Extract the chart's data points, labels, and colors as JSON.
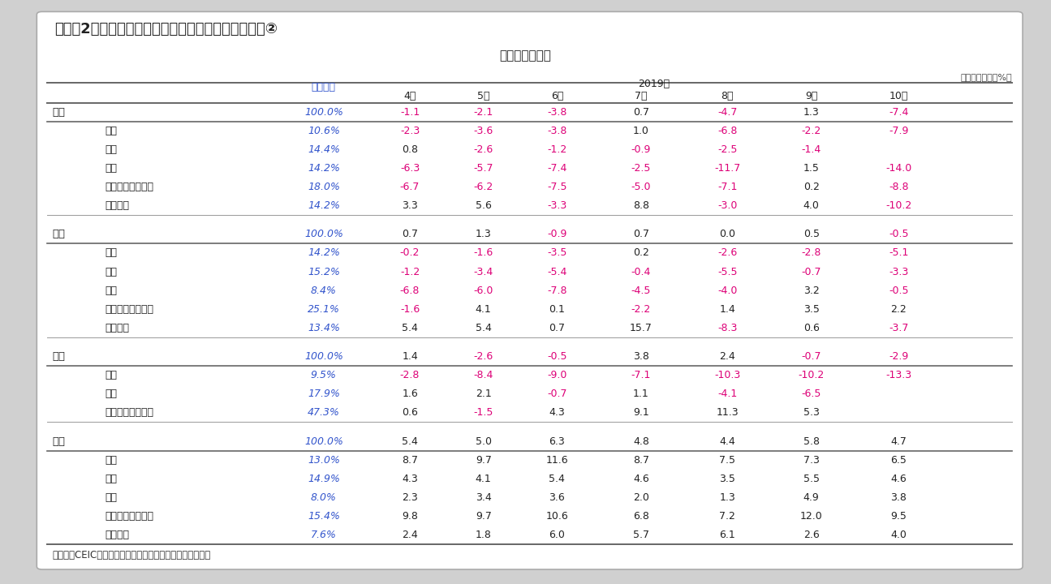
{
  "title": "（図表2）東アジア地域の鉱工業在庫・生産の推移　②",
  "subtitle": "－鉱工業生産－",
  "unit_label": "（前年同月比、%）",
  "source_label": "（出所）CEICよりインベスコ作成。一部はインベスコ推計",
  "header_year": "2019年",
  "header_weight": "ウエート",
  "columns": [
    "4月",
    "5月",
    "6月",
    "7月",
    "8月",
    "9月",
    "10月"
  ],
  "sections": [
    {
      "country": "日本",
      "weight": "100.0%",
      "values": [
        "-1.1",
        "-2.1",
        "-3.8",
        "0.7",
        "-4.7",
        "1.3",
        "-7.4"
      ],
      "neg_flags": [
        true,
        true,
        true,
        false,
        true,
        false,
        true
      ],
      "sub_rows": [
        {
          "label": "金属",
          "weight": "10.6%",
          "values": [
            "-2.3",
            "-3.6",
            "-3.8",
            "1.0",
            "-6.8",
            "-2.2",
            "-7.9"
          ],
          "neg_flags": [
            true,
            true,
            true,
            false,
            true,
            true,
            true
          ]
        },
        {
          "label": "化学",
          "weight": "14.4%",
          "values": [
            "0.8",
            "-2.6",
            "-1.2",
            "-0.9",
            "-2.5",
            "-1.4",
            ""
          ],
          "neg_flags": [
            false,
            true,
            true,
            true,
            true,
            true,
            false
          ]
        },
        {
          "label": "機械",
          "weight": "14.2%",
          "values": [
            "-6.3",
            "-5.7",
            "-7.4",
            "-2.5",
            "-11.7",
            "1.5",
            "-14.0"
          ],
          "neg_flags": [
            true,
            true,
            true,
            true,
            true,
            false,
            true
          ]
        },
        {
          "label": "エレクトロニクス",
          "weight": "18.0%",
          "values": [
            "-6.7",
            "-6.2",
            "-7.5",
            "-5.0",
            "-7.1",
            "0.2",
            "-8.8"
          ],
          "neg_flags": [
            true,
            true,
            true,
            true,
            true,
            false,
            true
          ]
        },
        {
          "label": "輸送機器",
          "weight": "14.2%",
          "values": [
            "3.3",
            "5.6",
            "-3.3",
            "8.8",
            "-3.0",
            "4.0",
            "-10.2"
          ],
          "neg_flags": [
            false,
            false,
            true,
            false,
            true,
            false,
            true
          ]
        }
      ]
    },
    {
      "country": "韓国",
      "weight": "100.0%",
      "values": [
        "0.7",
        "1.3",
        "-0.9",
        "0.7",
        "0.0",
        "0.5",
        "-0.5"
      ],
      "neg_flags": [
        false,
        false,
        true,
        false,
        false,
        false,
        true
      ],
      "sub_rows": [
        {
          "label": "金属",
          "weight": "14.2%",
          "values": [
            "-0.2",
            "-1.6",
            "-3.5",
            "0.2",
            "-2.6",
            "-2.8",
            "-5.1"
          ],
          "neg_flags": [
            true,
            true,
            true,
            false,
            true,
            true,
            true
          ]
        },
        {
          "label": "化学",
          "weight": "15.2%",
          "values": [
            "-1.2",
            "-3.4",
            "-5.4",
            "-0.4",
            "-5.5",
            "-0.7",
            "-3.3"
          ],
          "neg_flags": [
            true,
            true,
            true,
            true,
            true,
            true,
            true
          ]
        },
        {
          "label": "機械",
          "weight": "8.4%",
          "values": [
            "-6.8",
            "-6.0",
            "-7.8",
            "-4.5",
            "-4.0",
            "3.2",
            "-0.5"
          ],
          "neg_flags": [
            true,
            true,
            true,
            true,
            true,
            false,
            true
          ]
        },
        {
          "label": "エレクトロニクス",
          "weight": "25.1%",
          "values": [
            "-1.6",
            "4.1",
            "0.1",
            "-2.2",
            "1.4",
            "3.5",
            "2.2"
          ],
          "neg_flags": [
            true,
            false,
            false,
            true,
            false,
            false,
            false
          ]
        },
        {
          "label": "輸送機器",
          "weight": "13.4%",
          "values": [
            "5.4",
            "5.4",
            "0.7",
            "15.7",
            "-8.3",
            "0.6",
            "-3.7"
          ],
          "neg_flags": [
            false,
            false,
            false,
            false,
            true,
            false,
            true
          ]
        }
      ]
    },
    {
      "country": "台湾",
      "weight": "100.0%",
      "values": [
        "1.4",
        "-2.6",
        "-0.5",
        "3.8",
        "2.4",
        "-0.7",
        "-2.9"
      ],
      "neg_flags": [
        false,
        true,
        true,
        false,
        false,
        true,
        true
      ],
      "sub_rows": [
        {
          "label": "金属",
          "weight": "9.5%",
          "values": [
            "-2.8",
            "-8.4",
            "-9.0",
            "-7.1",
            "-10.3",
            "-10.2",
            "-13.3"
          ],
          "neg_flags": [
            true,
            true,
            true,
            true,
            true,
            true,
            true
          ]
        },
        {
          "label": "化学",
          "weight": "17.9%",
          "values": [
            "1.6",
            "2.1",
            "-0.7",
            "1.1",
            "-4.1",
            "-6.5",
            ""
          ],
          "neg_flags": [
            false,
            false,
            true,
            false,
            true,
            true,
            false
          ]
        },
        {
          "label": "エレクトロニクス",
          "weight": "47.3%",
          "values": [
            "0.6",
            "-1.5",
            "4.3",
            "9.1",
            "11.3",
            "5.3",
            ""
          ],
          "neg_flags": [
            false,
            true,
            false,
            false,
            false,
            false,
            false
          ]
        }
      ]
    },
    {
      "country": "中国",
      "weight": "100.0%",
      "values": [
        "5.4",
        "5.0",
        "6.3",
        "4.8",
        "4.4",
        "5.8",
        "4.7"
      ],
      "neg_flags": [
        false,
        false,
        false,
        false,
        false,
        false,
        false
      ],
      "sub_rows": [
        {
          "label": "金属",
          "weight": "13.0%",
          "values": [
            "8.7",
            "9.7",
            "11.6",
            "8.7",
            "7.5",
            "7.3",
            "6.5"
          ],
          "neg_flags": [
            false,
            false,
            false,
            false,
            false,
            false,
            false
          ]
        },
        {
          "label": "化学",
          "weight": "14.9%",
          "values": [
            "4.3",
            "4.1",
            "5.4",
            "4.6",
            "3.5",
            "5.5",
            "4.6"
          ],
          "neg_flags": [
            false,
            false,
            false,
            false,
            false,
            false,
            false
          ]
        },
        {
          "label": "機械",
          "weight": "8.0%",
          "values": [
            "2.3",
            "3.4",
            "3.6",
            "2.0",
            "1.3",
            "4.9",
            "3.8"
          ],
          "neg_flags": [
            false,
            false,
            false,
            false,
            false,
            false,
            false
          ]
        },
        {
          "label": "エレクトロニクス",
          "weight": "15.4%",
          "values": [
            "9.8",
            "9.7",
            "10.6",
            "6.8",
            "7.2",
            "12.0",
            "9.5"
          ],
          "neg_flags": [
            false,
            false,
            false,
            false,
            false,
            false,
            false
          ]
        },
        {
          "label": "輸送機器",
          "weight": "7.6%",
          "values": [
            "2.4",
            "1.8",
            "6.0",
            "5.7",
            "6.1",
            "2.6",
            "4.0"
          ],
          "neg_flags": [
            false,
            false,
            false,
            false,
            false,
            false,
            false
          ]
        }
      ]
    }
  ],
  "bg_color": "#d0d0d0",
  "table_bg": "#f2f2f2",
  "weight_color": "#3355cc",
  "neg_color": "#dd0077",
  "pos_color": "#222222",
  "country_color": "#222222",
  "line_color": "#666666",
  "header_color": "#222222"
}
